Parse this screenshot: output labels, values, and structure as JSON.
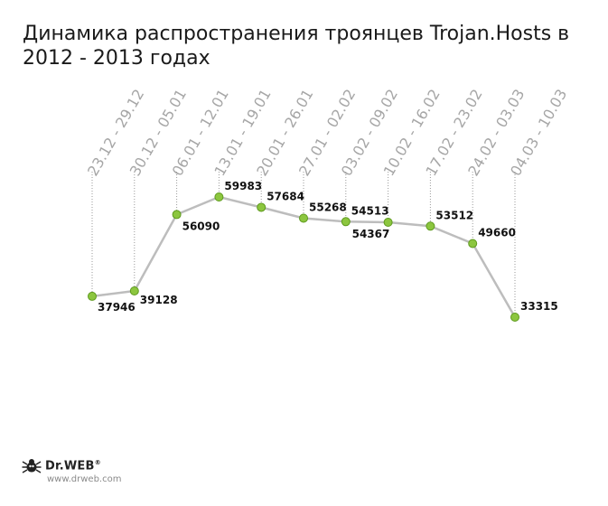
{
  "chart_data": {
    "type": "line",
    "title": "Динамика распространения троянцев Trojan.Hosts в 2012 - 2013 годах",
    "xlabel": "",
    "ylabel": "",
    "categories": [
      "23.12 - 29.12",
      "30.12 - 05.01",
      "06.01 - 12.01",
      "13.01 - 19.01",
      "20.01 - 26.01",
      "27.01 - 02.02",
      "03.02 - 09.02",
      "10.02 - 16.02",
      "17.02 - 23.02",
      "24.02 - 03.03",
      "04.03 - 10.03"
    ],
    "series": [
      {
        "values": [
          37946,
          39128,
          56090,
          59983,
          57684,
          55268,
          54513,
          54367,
          53512,
          49660,
          33315
        ],
        "labels": [
          "37946",
          "39128",
          "56090",
          "59983",
          "57684",
          "55268",
          "54513",
          "54367",
          "53512",
          "49660",
          "33315"
        ]
      }
    ],
    "grid": false,
    "legend": "none",
    "colors": {
      "line": "#bdbdbd",
      "marker": "#8cc63f",
      "marker_stroke": "#5e9a1e",
      "tick_label": "#a6a6a6"
    }
  },
  "brand": {
    "name": "Dr.WEB",
    "reg": "®",
    "website": "www.drweb.com",
    "icon": "spider-icon"
  }
}
